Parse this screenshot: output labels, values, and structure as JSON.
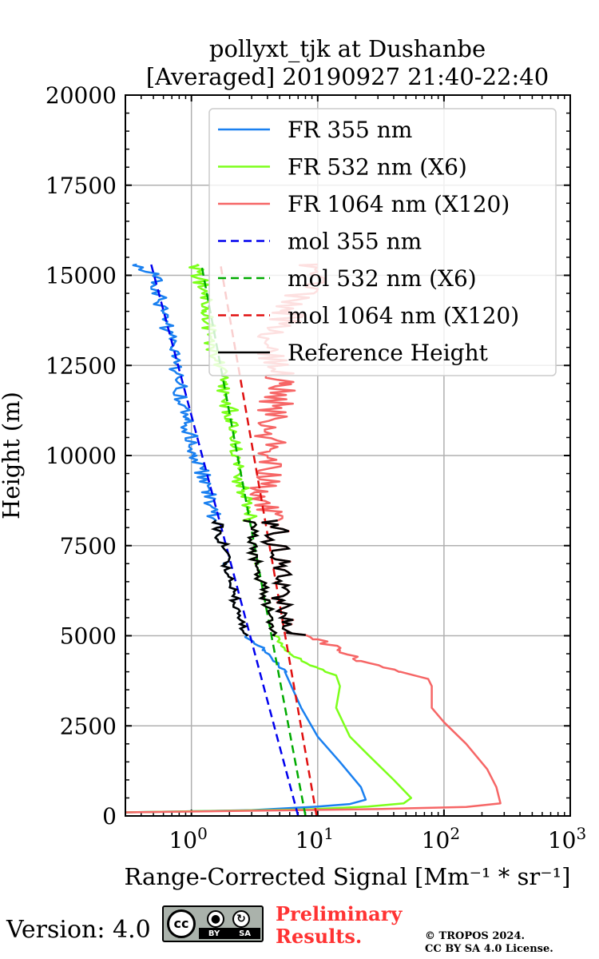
{
  "chart_data": {
    "type": "line",
    "title_line1": "pollyxt_tjk at Dushanbe",
    "title_line2": "[Averaged] 20190927 21:40-22:40",
    "xlabel": "Range-Corrected Signal [Mm⁻¹ * sr⁻¹]",
    "ylabel": "Height (m)",
    "xscale": "log",
    "xlim": [
      0.3,
      1000
    ],
    "ylim": [
      0,
      20000
    ],
    "x_ticks": [
      1,
      10,
      100,
      1000
    ],
    "x_tick_labels": [
      {
        "base": "10",
        "exp": "0"
      },
      {
        "base": "10",
        "exp": "1"
      },
      {
        "base": "10",
        "exp": "2"
      },
      {
        "base": "10",
        "exp": "3"
      }
    ],
    "y_ticks": [
      0,
      2500,
      5000,
      7500,
      10000,
      12500,
      15000,
      17500,
      20000
    ],
    "y_tick_labels": [
      "0",
      "2500",
      "5000",
      "7500",
      "10000",
      "12500",
      "15000",
      "17500",
      "20000"
    ],
    "grid": true,
    "legend_position": "top-right",
    "series": [
      {
        "name": "FR 355 nm",
        "color": "#1a80f0",
        "style": "solid",
        "noise": 0.06,
        "points": [
          [
            0.3,
            100
          ],
          [
            3,
            160
          ],
          [
            10,
            260
          ],
          [
            18,
            330
          ],
          [
            24,
            450
          ],
          [
            22,
            800
          ],
          [
            15,
            1500
          ],
          [
            10,
            2200
          ],
          [
            7.4,
            3000
          ],
          [
            5.5,
            4000
          ],
          [
            3.8,
            4600
          ],
          [
            2.7,
            5000
          ],
          [
            2.2,
            6000
          ],
          [
            1.9,
            7000
          ],
          [
            1.6,
            8000
          ],
          [
            1.35,
            9000
          ],
          [
            1.1,
            10000
          ],
          [
            0.9,
            11000
          ],
          [
            0.8,
            12000
          ],
          [
            0.7,
            13000
          ],
          [
            0.6,
            14000
          ],
          [
            0.5,
            15000
          ],
          [
            0.37,
            15300
          ]
        ]
      },
      {
        "name": "FR 532 nm (X6)",
        "color": "#7cff1a",
        "style": "solid",
        "noise": 0.07,
        "points": [
          [
            0.3,
            100
          ],
          [
            8,
            180
          ],
          [
            25,
            260
          ],
          [
            48,
            350
          ],
          [
            55,
            500
          ],
          [
            40,
            1000
          ],
          [
            25,
            1700
          ],
          [
            18,
            2200
          ],
          [
            14,
            3000
          ],
          [
            15,
            3600
          ],
          [
            14,
            3900
          ],
          [
            10,
            4100
          ],
          [
            6,
            4500
          ],
          [
            4.6,
            5000
          ],
          [
            3.9,
            6000
          ],
          [
            3.3,
            7000
          ],
          [
            3,
            8000
          ],
          [
            2.6,
            9000
          ],
          [
            2.2,
            10000
          ],
          [
            2.1,
            11000
          ],
          [
            1.8,
            12000
          ],
          [
            1.5,
            13000
          ],
          [
            1.3,
            14000
          ],
          [
            1.1,
            15300
          ]
        ]
      },
      {
        "name": "FR 1064 nm (X120)",
        "color": "#f66666",
        "style": "solid",
        "noise": 0.14,
        "points": [
          [
            0.3,
            100
          ],
          [
            30,
            190
          ],
          [
            150,
            250
          ],
          [
            280,
            350
          ],
          [
            260,
            800
          ],
          [
            220,
            1300
          ],
          [
            150,
            2000
          ],
          [
            100,
            2600
          ],
          [
            80,
            3000
          ],
          [
            80,
            3600
          ],
          [
            75,
            3800
          ],
          [
            45,
            4000
          ],
          [
            22,
            4300
          ],
          [
            15,
            4600
          ],
          [
            10,
            4900
          ],
          [
            6,
            5100
          ],
          [
            5.2,
            6000
          ],
          [
            5,
            7000
          ],
          [
            4.5,
            8000
          ],
          [
            4,
            9000
          ],
          [
            4,
            10000
          ],
          [
            5,
            12000
          ],
          [
            4,
            13000
          ],
          [
            6,
            14000
          ],
          [
            10,
            15300
          ]
        ]
      },
      {
        "name": "mol 355 nm",
        "color": "#0000ee",
        "style": "dashed",
        "noise": 0,
        "points": [
          [
            7,
            0
          ],
          [
            0.48,
            15300
          ]
        ]
      },
      {
        "name": "mol 532 nm (X6)",
        "color": "#00aa00",
        "style": "dashed",
        "noise": 0,
        "points": [
          [
            8,
            0
          ],
          [
            1.2,
            15300
          ]
        ]
      },
      {
        "name": "mol 1064 nm (X120)",
        "color": "#e01010",
        "style": "dashed",
        "noise": 0,
        "points": [
          [
            9.8,
            0
          ],
          [
            1.7,
            15300
          ]
        ]
      }
    ],
    "reference_height": {
      "name": "Reference Height",
      "color": "#000000",
      "ymin": 5000,
      "ymax": 8200,
      "on_series": [
        "FR 355 nm",
        "FR 532 nm (X6)",
        "FR 1064 nm (X120)"
      ]
    }
  },
  "footer": {
    "version": "Version: 4.0",
    "cc_label": "cc",
    "cc_by": "BY",
    "cc_sa": "SA",
    "preliminary": "Preliminary",
    "results": "Results.",
    "copyright": "© TROPOS 2024.",
    "license": "CC BY SA 4.0 License."
  }
}
